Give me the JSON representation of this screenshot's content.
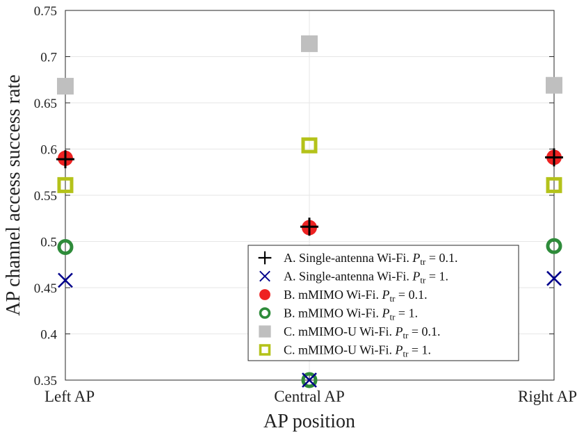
{
  "chart_data": {
    "type": "scatter",
    "xlabel": "AP position",
    "ylabel": "AP channel access success rate",
    "categories": [
      "Left AP",
      "Central AP",
      "Right AP"
    ],
    "ylim": [
      0.35,
      0.75
    ],
    "yticks": [
      0.35,
      0.4,
      0.45,
      0.5,
      0.55,
      0.6,
      0.65,
      0.7,
      0.75
    ],
    "ytick_labels": [
      "0.35",
      "0.4",
      "0.45",
      "0.5",
      "0.55",
      "0.6",
      "0.65",
      "0.7",
      "0.75"
    ],
    "grid": true,
    "legend_position": "bottom-right",
    "series": [
      {
        "key": "single_p01",
        "marker": "plus",
        "color": "#000000",
        "legend_prefix": "A. Single-antenna Wi-Fi.",
        "legend_suffix": "= 0.1.",
        "values": [
          0.589,
          0.516,
          0.591
        ]
      },
      {
        "key": "single_p1",
        "marker": "x",
        "color": "#00008b",
        "legend_prefix": "A. Single-antenna Wi-Fi.",
        "legend_suffix": "= 1.",
        "values": [
          0.458,
          0.35,
          0.46
        ]
      },
      {
        "key": "mmimo_p01",
        "marker": "filled-circle",
        "color": "#ee2222",
        "legend_prefix": "B. mMIMO Wi-Fi.",
        "legend_suffix": "= 0.1.",
        "values": [
          0.59,
          0.515,
          0.591
        ]
      },
      {
        "key": "mmimo_p1",
        "marker": "open-circle",
        "color": "#2e8b3a",
        "legend_prefix": "B. mMIMO Wi-Fi.",
        "legend_suffix": "= 1.",
        "values": [
          0.494,
          0.35,
          0.495
        ]
      },
      {
        "key": "mmimou_p01",
        "marker": "filled-square",
        "color": "#bfbfbf",
        "legend_prefix": "C. mMIMO-U Wi-Fi.",
        "legend_suffix": "= 0.1.",
        "values": [
          0.668,
          0.714,
          0.669
        ]
      },
      {
        "key": "mmimou_p1",
        "marker": "open-square",
        "color": "#b4c21a",
        "legend_prefix": "C. mMIMO-U Wi-Fi.",
        "legend_suffix": "= 1.",
        "values": [
          0.561,
          0.604,
          0.561
        ]
      }
    ],
    "legend_symbol": {
      "P": "P",
      "sub": "tr"
    }
  }
}
